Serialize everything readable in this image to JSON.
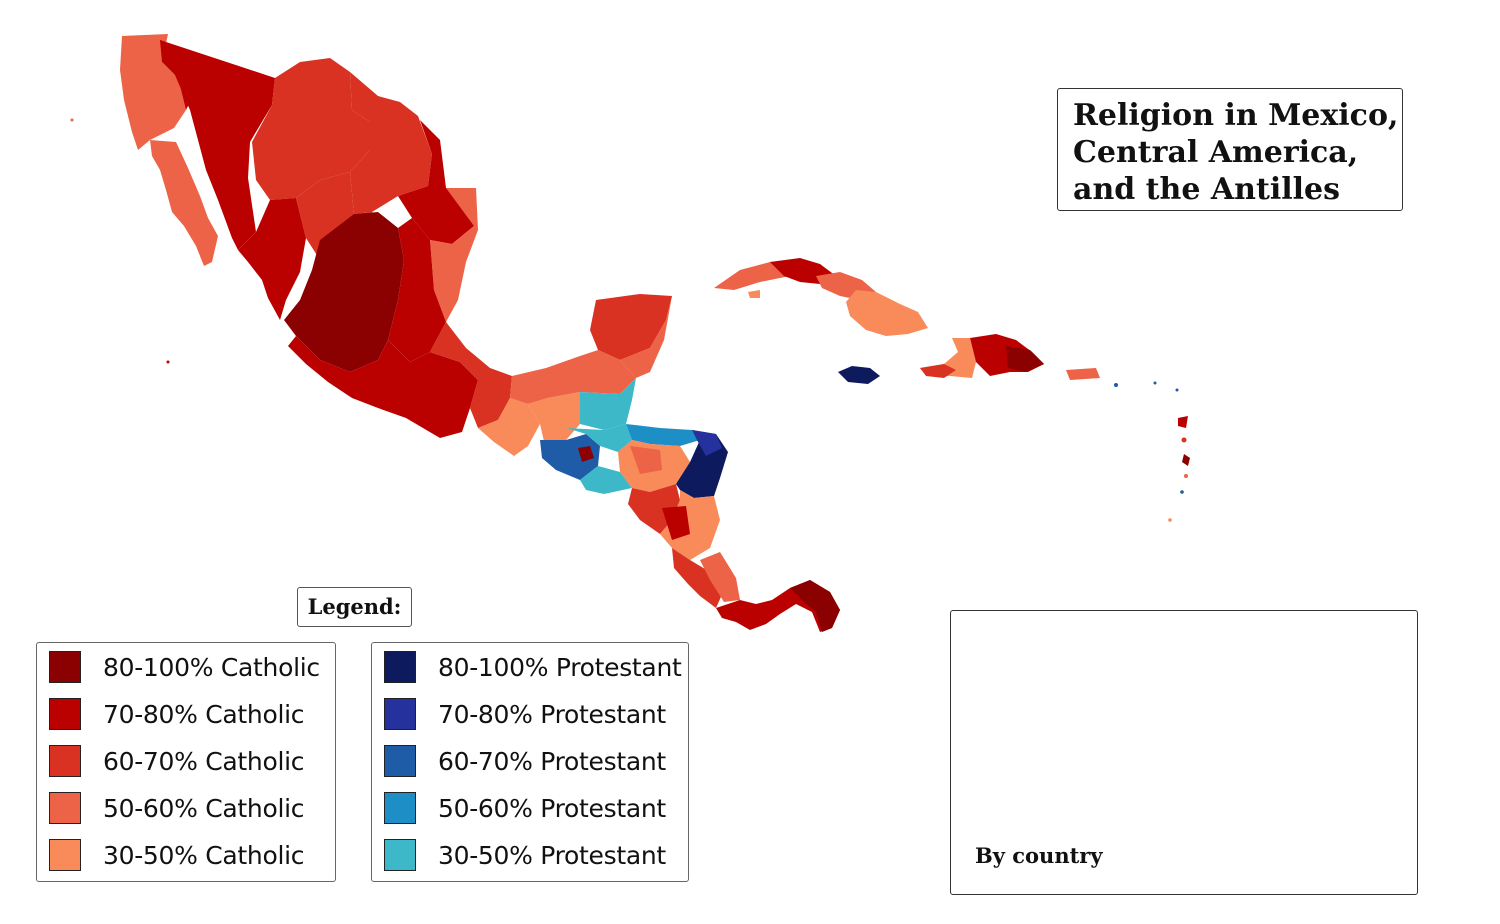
{
  "title": {
    "line1": "Religion in Mexico,",
    "line2": "Central America,",
    "line3": "and the Antilles"
  },
  "legend": {
    "title": "Legend:",
    "catholic": [
      {
        "label": "80-100% Catholic",
        "color": "#8b0000"
      },
      {
        "label": "70-80% Catholic",
        "color": "#bb0000"
      },
      {
        "label": "60-70% Catholic",
        "color": "#d93222"
      },
      {
        "label": "50-60% Catholic",
        "color": "#ed6347"
      },
      {
        "label": "30-50% Catholic",
        "color": "#f98a5a"
      }
    ],
    "protestant": [
      {
        "label": "80-100% Protestant",
        "color": "#0d1a5e"
      },
      {
        "label": "70-80% Protestant",
        "color": "#25319c"
      },
      {
        "label": "60-70% Protestant",
        "color": "#1f5ca8"
      },
      {
        "label": "50-60% Protestant",
        "color": "#1d8fc6"
      },
      {
        "label": "30-50% Protestant",
        "color": "#3db8c8"
      }
    ]
  },
  "inset": {
    "caption": "By country"
  }
}
